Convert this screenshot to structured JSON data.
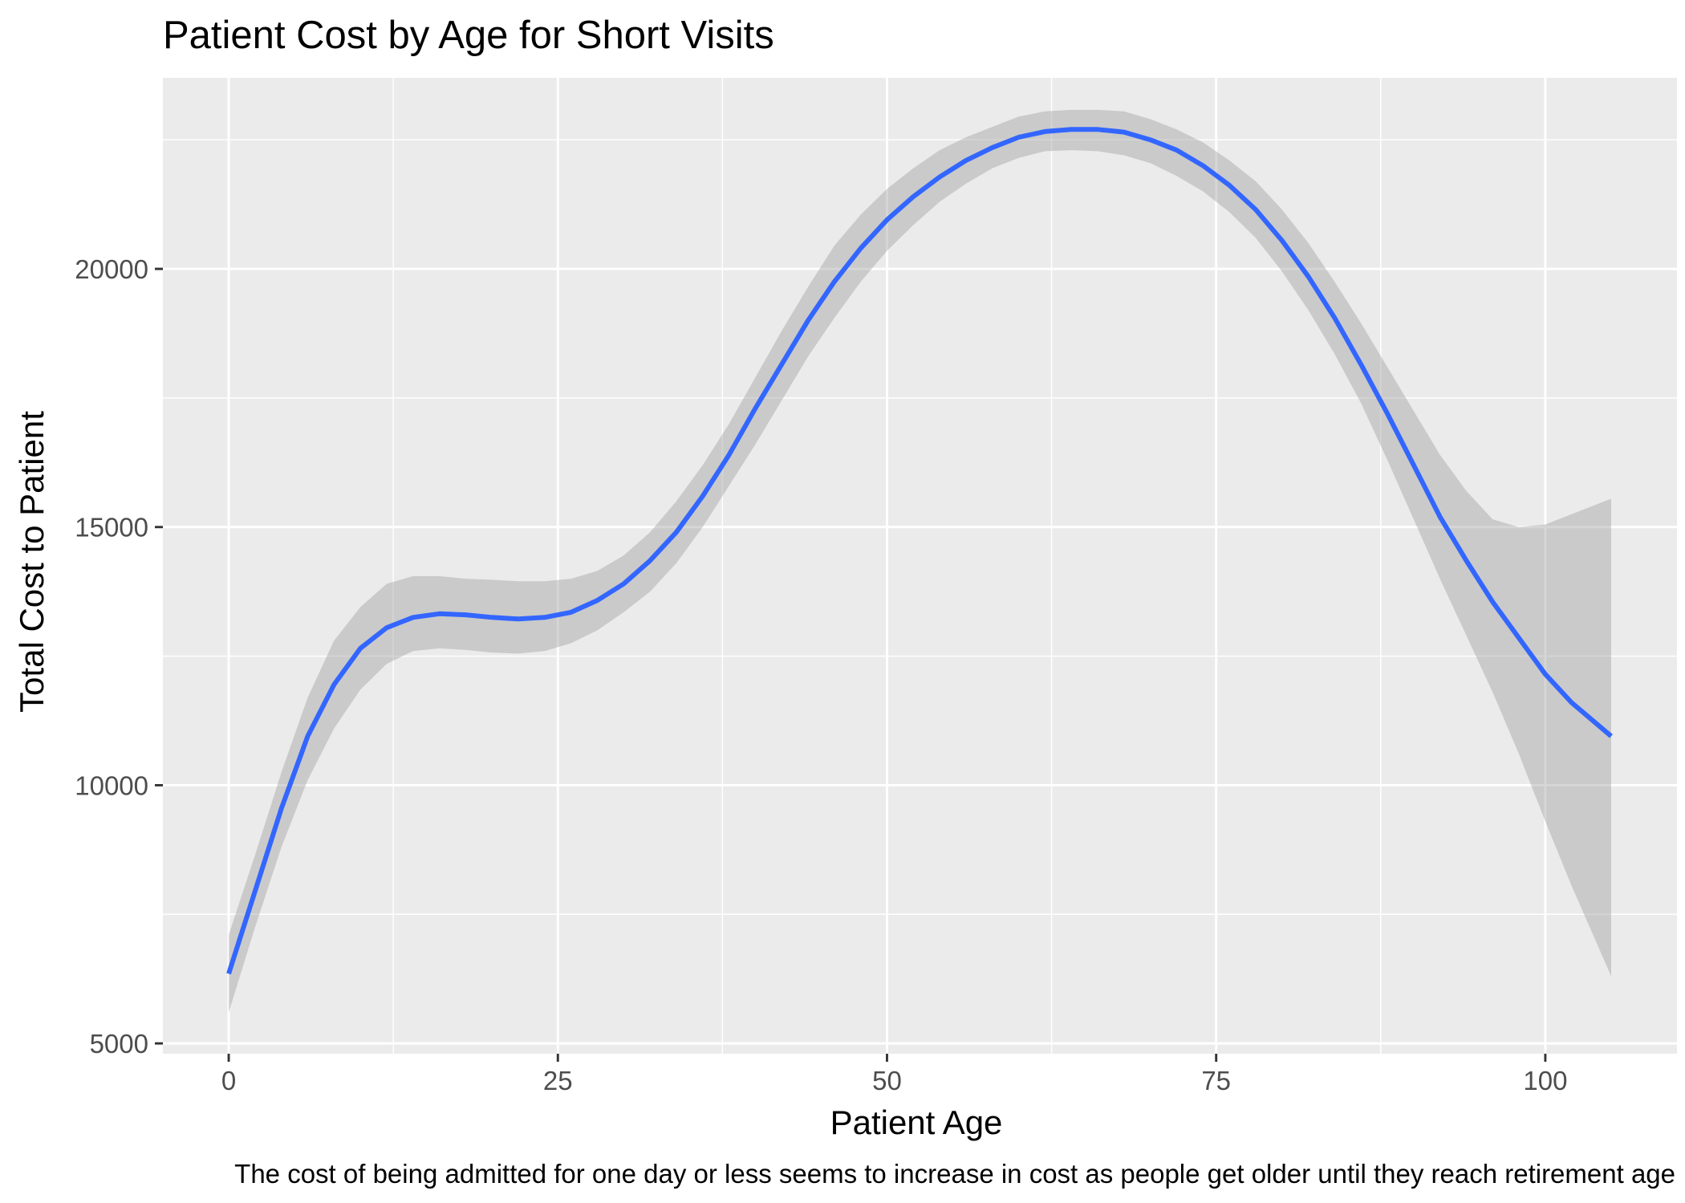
{
  "chart_data": {
    "type": "line",
    "title": "Patient Cost by Age for Short Visits",
    "xlabel": "Patient Age",
    "ylabel": "Total Cost to Patient",
    "caption": "The cost of being admitted for one day or less seems to increase in cost as people get older until they reach retirement age",
    "xlim": [
      -5,
      110
    ],
    "ylim": [
      4800,
      23700
    ],
    "x_ticks": [
      0,
      25,
      50,
      75,
      100
    ],
    "x_tick_labels": [
      "0",
      "25",
      "50",
      "75",
      "100"
    ],
    "x_minor_ticks": [
      12.5,
      37.5,
      62.5,
      87.5
    ],
    "y_ticks": [
      5000,
      10000,
      15000,
      20000
    ],
    "y_tick_labels": [
      "5000",
      "10000",
      "15000",
      "20000"
    ],
    "y_minor_ticks": [
      7500,
      12500,
      17500,
      22500
    ],
    "grid": true,
    "legend": "none",
    "colors": {
      "line": "#3366ff",
      "ribbon": "#999999",
      "panel": "#ebebeb",
      "grid": "#ffffff"
    },
    "series": [
      {
        "x": [
          0,
          2,
          4,
          6,
          8,
          10,
          12,
          14,
          16,
          18,
          20,
          22,
          24,
          26,
          28,
          30,
          32,
          34,
          36,
          38,
          40,
          42,
          44,
          46,
          48,
          50,
          52,
          54,
          56,
          58,
          60,
          62,
          64,
          66,
          68,
          70,
          72,
          74,
          76,
          78,
          80,
          82,
          84,
          86,
          88,
          90,
          92,
          94,
          96,
          98,
          100,
          102,
          105
        ],
        "y": [
          6350,
          7950,
          9550,
          10950,
          11950,
          12650,
          13050,
          13250,
          13320,
          13300,
          13250,
          13220,
          13250,
          13350,
          13580,
          13900,
          14350,
          14900,
          15600,
          16400,
          17300,
          18150,
          19000,
          19750,
          20400,
          20950,
          21400,
          21780,
          22100,
          22350,
          22550,
          22660,
          22700,
          22700,
          22650,
          22500,
          22300,
          22000,
          21620,
          21150,
          20550,
          19850,
          19050,
          18150,
          17200,
          16200,
          15200,
          14350,
          13550,
          12850,
          12150,
          11600,
          10950
        ],
        "lower": [
          5600,
          7250,
          8800,
          10100,
          11100,
          11850,
          12350,
          12600,
          12650,
          12620,
          12570,
          12550,
          12600,
          12750,
          13000,
          13350,
          13750,
          14300,
          15000,
          15800,
          16600,
          17450,
          18300,
          19050,
          19750,
          20350,
          20850,
          21300,
          21650,
          21950,
          22150,
          22280,
          22300,
          22280,
          22200,
          22050,
          21800,
          21500,
          21100,
          20600,
          19950,
          19200,
          18350,
          17400,
          16300,
          15150,
          14000,
          12900,
          11800,
          10600,
          9300,
          8050,
          6300
        ],
        "upper": [
          7100,
          8650,
          10250,
          11700,
          12800,
          13450,
          13900,
          14050,
          14050,
          14000,
          13980,
          13950,
          13950,
          14000,
          14150,
          14450,
          14900,
          15500,
          16200,
          17000,
          17900,
          18800,
          19650,
          20450,
          21050,
          21550,
          21950,
          22300,
          22550,
          22750,
          22950,
          23050,
          23080,
          23080,
          23050,
          22900,
          22700,
          22450,
          22100,
          21700,
          21150,
          20500,
          19750,
          18950,
          18100,
          17250,
          16400,
          15700,
          15150,
          15000,
          15050,
          15250,
          15550
        ]
      }
    ]
  }
}
